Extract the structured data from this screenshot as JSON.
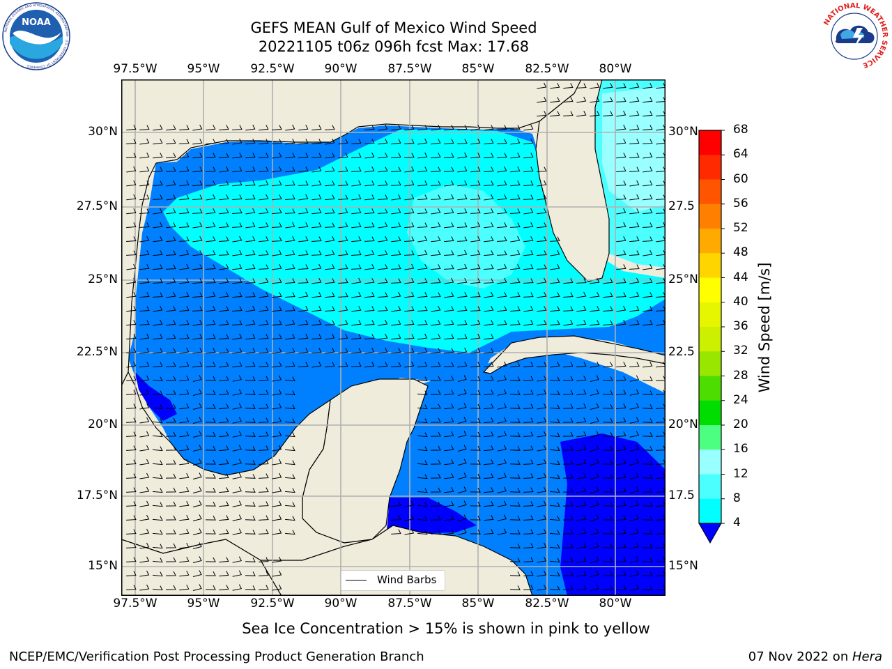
{
  "title": {
    "line1": "GEFS MEAN Gulf of Mexico Wind Speed",
    "line2": "20221105 t06z 096h fcst   Max: 17.68"
  },
  "logos": {
    "left": {
      "name": "noaa-logo",
      "text": "NOAA",
      "ring_text": "NATIONAL OCEANIC AND ATMOSPHERIC ADMINISTRATION · U.S. DEPARTMENT OF COMMERCE"
    },
    "right": {
      "name": "nws-logo",
      "ring_text": "NATIONAL WEATHER SERVICE"
    }
  },
  "map": {
    "lon_labels": [
      "97.5°W",
      "95°W",
      "92.5°W",
      "90°W",
      "87.5°W",
      "85°W",
      "82.5°W",
      "80°W"
    ],
    "lat_labels": [
      "30°N",
      "27.5°N",
      "25°N",
      "22.5°N",
      "20°N",
      "17.5°N",
      "15°N"
    ],
    "lat_labels_right": [
      "30°N",
      "27.5",
      "25°N",
      "22.5",
      "20°N",
      "17.5",
      "15°N"
    ],
    "land_color": "#efecdc",
    "legend_label": "Wind Barbs"
  },
  "colorbar": {
    "label": "Wind Speed [m/s]",
    "ticks": [
      "68",
      "64",
      "60",
      "56",
      "52",
      "48",
      "44",
      "40",
      "36",
      "32",
      "28",
      "24",
      "20",
      "16",
      "12",
      "8",
      "4"
    ],
    "colors": [
      "#ff0000",
      "#ff2a00",
      "#ff5500",
      "#ff8000",
      "#ffaa00",
      "#ffd500",
      "#ffff00",
      "#e6f500",
      "#ccf000",
      "#99e600",
      "#4ddd00",
      "#00dd00",
      "#4cff80",
      "#99ffff",
      "#4cffff",
      "#00ffff",
      "#0080ff"
    ],
    "extend_color": "#0000ff"
  },
  "subtitle": "Sea Ice Concentration > 15% is shown in pink to yellow",
  "footer": {
    "left": "NCEP/EMC/Verification Post Processing Product Generation Branch",
    "date": "07 Nov 2022 on ",
    "host": "Hera"
  }
}
